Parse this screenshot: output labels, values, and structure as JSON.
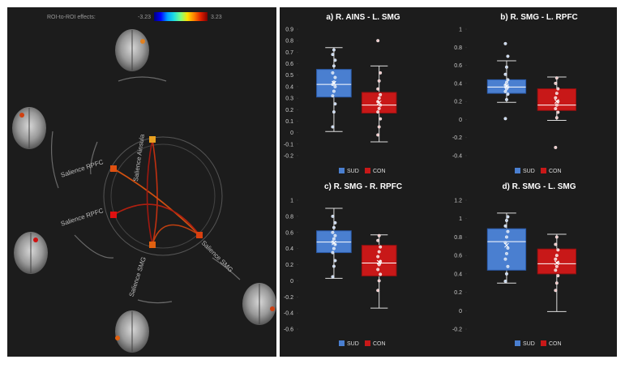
{
  "colorbar": {
    "label": "ROI-to-ROI effects:",
    "min_label": "-3.23",
    "max_label": "3.23",
    "colors": [
      "#00007f",
      "#0000ff",
      "#00a0ff",
      "#20e0e0",
      "#80ff80",
      "#ffe000",
      "#ff8000",
      "#e02000",
      "#7f0000"
    ]
  },
  "connectome": {
    "nodes": [
      {
        "label": "Salience Ainsula",
        "color": "#e8a020"
      },
      {
        "label": "Salience RPFC",
        "color": "#e05010"
      },
      {
        "label": "Salience RPFC",
        "color": "#e01010"
      },
      {
        "label": "Salience SMG",
        "color": "#e06010"
      },
      {
        "label": "Salience SMG",
        "color": "#d84010"
      }
    ],
    "edge_colors": [
      "#c03010",
      "#d05010",
      "#b02010",
      "#c04010",
      "#a01810"
    ]
  },
  "legend_labels": {
    "sud": "SUD",
    "con": "CON"
  },
  "series_colors": {
    "sud": "#4a7fd0",
    "con": "#c81818"
  },
  "chart_data": [
    {
      "type": "box",
      "panel_letter": "a)",
      "title": "R. AINS - L. SMG",
      "ylim": [
        -0.2,
        0.9
      ],
      "yticks": [
        "-0.2",
        "-0.1",
        "0",
        "0.1",
        "0.2",
        "0.3",
        "0.4",
        "0.5",
        "0.6",
        "0.7",
        "0.8",
        "0.9"
      ],
      "series": [
        {
          "name": "SUD",
          "whisker_low": 0.01,
          "q1": 0.31,
          "median": 0.42,
          "mean": 0.43,
          "q3": 0.55,
          "whisker_high": 0.74,
          "points": [
            0.05,
            0.18,
            0.25,
            0.32,
            0.36,
            0.4,
            0.42,
            0.44,
            0.48,
            0.52,
            0.58,
            0.63,
            0.68,
            0.72
          ]
        },
        {
          "name": "CON",
          "whisker_low": -0.08,
          "q1": 0.17,
          "median": 0.24,
          "mean": 0.26,
          "q3": 0.35,
          "whisker_high": 0.58,
          "points": [
            -0.02,
            0.05,
            0.12,
            0.18,
            0.21,
            0.24,
            0.27,
            0.3,
            0.33,
            0.38,
            0.45,
            0.52,
            0.8
          ]
        }
      ]
    },
    {
      "type": "box",
      "panel_letter": "b)",
      "title": "R. SMG - L. RPFC",
      "ylim": [
        -0.4,
        1.0
      ],
      "yticks": [
        "-0.4",
        "-0.2",
        "0",
        "0.2",
        "0.4",
        "0.6",
        "0.8",
        "1"
      ],
      "series": [
        {
          "name": "SUD",
          "whisker_low": 0.19,
          "q1": 0.29,
          "median": 0.36,
          "mean": 0.37,
          "q3": 0.44,
          "whisker_high": 0.65,
          "points": [
            0.01,
            0.22,
            0.28,
            0.31,
            0.34,
            0.36,
            0.38,
            0.41,
            0.44,
            0.5,
            0.58,
            0.7,
            0.84
          ]
        },
        {
          "name": "CON",
          "whisker_low": -0.01,
          "q1": 0.1,
          "median": 0.16,
          "mean": 0.2,
          "q3": 0.34,
          "whisker_high": 0.47,
          "points": [
            -0.31,
            0.02,
            0.08,
            0.12,
            0.16,
            0.2,
            0.24,
            0.29,
            0.34,
            0.4,
            0.46
          ]
        }
      ]
    },
    {
      "type": "box",
      "panel_letter": "c)",
      "title": "R. SMG - R. RPFC",
      "ylim": [
        -0.6,
        1.0
      ],
      "yticks": [
        "-0.6",
        "-0.4",
        "-0.2",
        "0",
        "0.2",
        "0.4",
        "0.6",
        "0.8",
        "1"
      ],
      "series": [
        {
          "name": "SUD",
          "whisker_low": 0.03,
          "q1": 0.35,
          "median": 0.48,
          "mean": 0.47,
          "q3": 0.62,
          "whisker_high": 0.9,
          "points": [
            0.05,
            0.18,
            0.25,
            0.35,
            0.4,
            0.45,
            0.48,
            0.52,
            0.56,
            0.6,
            0.66,
            0.72,
            0.8
          ]
        },
        {
          "name": "CON",
          "whisker_low": -0.34,
          "q1": 0.06,
          "median": 0.22,
          "mean": 0.23,
          "q3": 0.44,
          "whisker_high": 0.57,
          "points": [
            -0.12,
            0.0,
            0.08,
            0.14,
            0.2,
            0.24,
            0.3,
            0.36,
            0.42,
            0.5,
            0.56
          ]
        }
      ]
    },
    {
      "type": "box",
      "panel_letter": "d)",
      "title": "R. SMG - L. SMG",
      "ylim": [
        -0.2,
        1.2
      ],
      "yticks": [
        "-0.2",
        "0",
        "0.2",
        "0.4",
        "0.6",
        "0.8",
        "1",
        "1.2"
      ],
      "series": [
        {
          "name": "SUD",
          "whisker_low": 0.3,
          "q1": 0.44,
          "median": 0.75,
          "mean": 0.71,
          "q3": 0.89,
          "whisker_high": 1.06,
          "points": [
            0.32,
            0.4,
            0.48,
            0.56,
            0.62,
            0.68,
            0.74,
            0.8,
            0.86,
            0.92,
            0.98,
            1.02
          ]
        },
        {
          "name": "CON",
          "whisker_low": -0.01,
          "q1": 0.4,
          "median": 0.51,
          "mean": 0.52,
          "q3": 0.67,
          "whisker_high": 0.83,
          "points": [
            0.22,
            0.3,
            0.38,
            0.44,
            0.48,
            0.52,
            0.56,
            0.6,
            0.66,
            0.72,
            0.8
          ]
        }
      ]
    }
  ]
}
